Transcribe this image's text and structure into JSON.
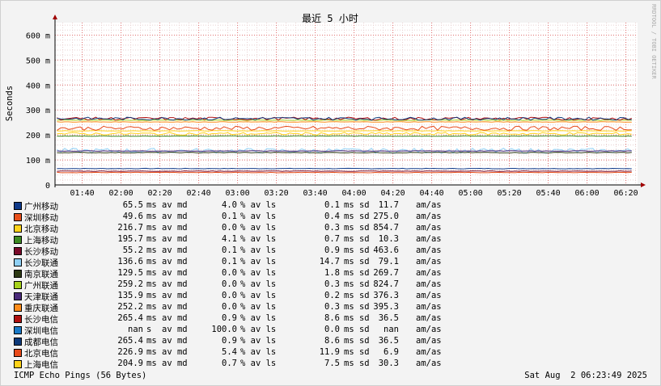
{
  "chart_data": {
    "type": "line",
    "title": "最近 5 小时",
    "ylabel": "Seconds",
    "ylim": [
      0,
      0.65
    ],
    "xlim": [
      "01:26",
      "06:26"
    ],
    "y_ticks": [
      {
        "v": 0,
        "label": "0"
      },
      {
        "v": 0.1,
        "label": "100 m"
      },
      {
        "v": 0.2,
        "label": "200 m"
      },
      {
        "v": 0.3,
        "label": "300 m"
      },
      {
        "v": 0.4,
        "label": "400 m"
      },
      {
        "v": 0.5,
        "label": "500 m"
      },
      {
        "v": 0.6,
        "label": "600 m"
      }
    ],
    "x_ticks": [
      "01:40",
      "02:00",
      "02:20",
      "02:40",
      "03:00",
      "03:20",
      "03:40",
      "04:00",
      "04:20",
      "04:40",
      "05:00",
      "05:20",
      "05:40",
      "06:00",
      "06:20"
    ],
    "grid": true,
    "series": [
      {
        "name": "广州移动",
        "color": "#103a8a",
        "cur": "65.5",
        "cur_unit": "ms",
        "loss": "4.0",
        "sd": "0.1",
        "sd_unit": "ms",
        "ratio": "11.7"
      },
      {
        "name": "深圳移动",
        "color": "#e8501c",
        "cur": "49.6",
        "cur_unit": "ms",
        "loss": "0.1",
        "sd": "0.4",
        "sd_unit": "ms",
        "ratio": "275.0"
      },
      {
        "name": "北京移动",
        "color": "#ffd31a",
        "cur": "216.7",
        "cur_unit": "ms",
        "loss": "0.0",
        "sd": "0.3",
        "sd_unit": "ms",
        "ratio": "854.7"
      },
      {
        "name": "上海移动",
        "color": "#3d8b23",
        "cur": "195.7",
        "cur_unit": "ms",
        "loss": "4.1",
        "sd": "0.7",
        "sd_unit": "ms",
        "ratio": "10.3"
      },
      {
        "name": "长沙移动",
        "color": "#7a0a2a",
        "cur": "55.2",
        "cur_unit": "ms",
        "loss": "0.1",
        "sd": "0.9",
        "sd_unit": "ms",
        "ratio": "463.6"
      },
      {
        "name": "长沙联通",
        "color": "#8fd0f5",
        "cur": "136.6",
        "cur_unit": "ms",
        "loss": "0.1",
        "sd": "14.7",
        "sd_unit": "ms",
        "ratio": "79.1"
      },
      {
        "name": "南京联通",
        "color": "#2d3a14",
        "cur": "129.5",
        "cur_unit": "ms",
        "loss": "0.0",
        "sd": "1.8",
        "sd_unit": "ms",
        "ratio": "269.7"
      },
      {
        "name": "广州联通",
        "color": "#a6d21c",
        "cur": "259.2",
        "cur_unit": "ms",
        "loss": "0.0",
        "sd": "0.3",
        "sd_unit": "ms",
        "ratio": "824.7"
      },
      {
        "name": "天津联通",
        "color": "#4a2a7a",
        "cur": "135.9",
        "cur_unit": "ms",
        "loss": "0.0",
        "sd": "0.2",
        "sd_unit": "ms",
        "ratio": "376.3"
      },
      {
        "name": "重庆联通",
        "color": "#ff8c1a",
        "cur": "252.2",
        "cur_unit": "ms",
        "loss": "0.0",
        "sd": "0.3",
        "sd_unit": "ms",
        "ratio": "395.3"
      },
      {
        "name": "长沙电信",
        "color": "#b01010",
        "cur": "265.4",
        "cur_unit": "ms",
        "loss": "0.9",
        "sd": "8.6",
        "sd_unit": "ms",
        "ratio": "36.5"
      },
      {
        "name": "深圳电信",
        "color": "#1a7ac8",
        "cur": "nan",
        "cur_unit": "s",
        "loss": "100.0",
        "sd": "0.0",
        "sd_unit": "ms",
        "ratio": "nan"
      },
      {
        "name": "成都电信",
        "color": "#0e3a7a",
        "cur": "265.4",
        "cur_unit": "ms",
        "loss": "0.9",
        "sd": "8.6",
        "sd_unit": "ms",
        "ratio": "36.5"
      },
      {
        "name": "北京电信",
        "color": "#e84a1a",
        "cur": "226.9",
        "cur_unit": "ms",
        "loss": "5.4",
        "sd": "11.9",
        "sd_unit": "ms",
        "ratio": "6.9"
      },
      {
        "name": "上海电信",
        "color": "#ffd31a",
        "cur": "204.9",
        "cur_unit": "ms",
        "loss": "0.7",
        "sd": "7.5",
        "sd_unit": "ms",
        "ratio": "30.3"
      }
    ]
  },
  "labels": {
    "av_md": "av md",
    "av_ls": "% av ls",
    "sd": "sd",
    "am_as": "am/as"
  },
  "watermark": "RRDTOOL / TOBI OETIKER",
  "footer": {
    "left": "ICMP Echo Pings (56 Bytes)",
    "right": "Sat Aug  2 06:23:49 2025"
  }
}
